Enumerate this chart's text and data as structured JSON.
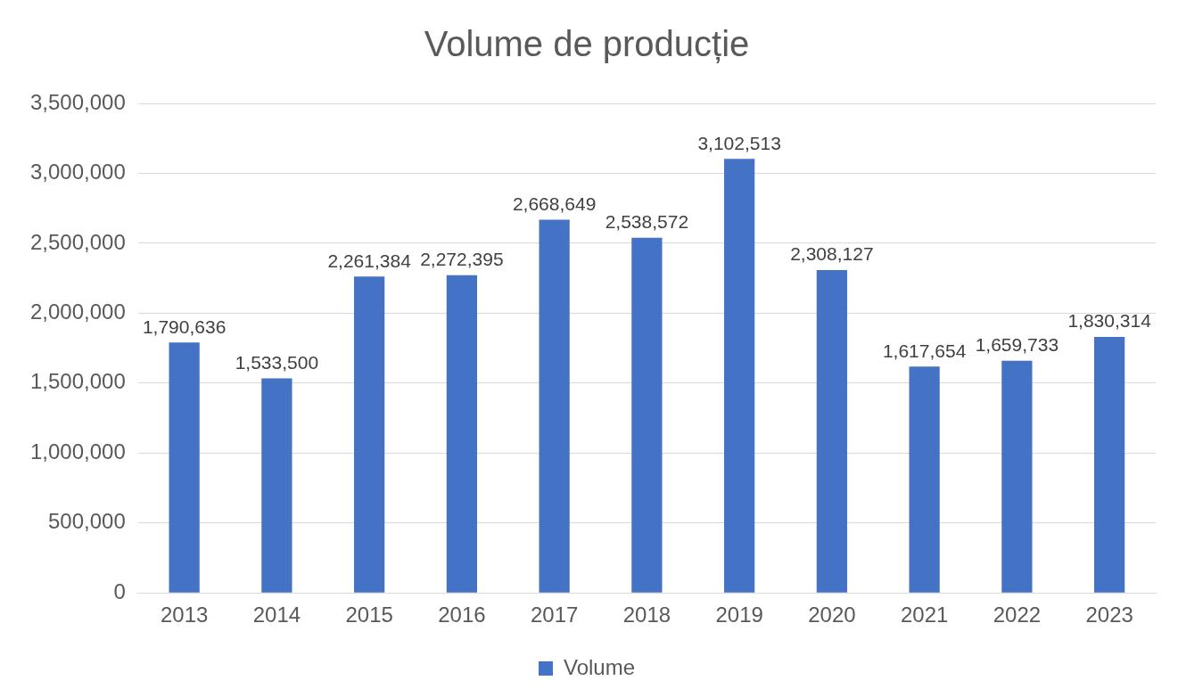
{
  "chart_data": {
    "type": "bar",
    "title": "Volume de producție",
    "categories": [
      "2013",
      "2014",
      "2015",
      "2016",
      "2017",
      "2018",
      "2019",
      "2020",
      "2021",
      "2022",
      "2023"
    ],
    "series": [
      {
        "name": "Volume",
        "color": "#4472c4",
        "values": [
          1790636,
          1533500,
          2261384,
          2272395,
          2668649,
          2538572,
          3102513,
          2308127,
          1617654,
          1659733,
          1830314
        ],
        "value_labels": [
          "1,790,636",
          "1,533,500",
          "2,261,384",
          "2,272,395",
          "2,668,649",
          "2,538,572",
          "3,102,513",
          "2,308,127",
          "1,617,654",
          "1,659,733",
          "1,830,314"
        ]
      }
    ],
    "ylim": [
      0,
      3500000
    ],
    "yticks": [
      {
        "value": 0,
        "label": "0"
      },
      {
        "value": 500000,
        "label": "500,000"
      },
      {
        "value": 1000000,
        "label": "1,000,000"
      },
      {
        "value": 1500000,
        "label": "1,500,000"
      },
      {
        "value": 2000000,
        "label": "2,000,000"
      },
      {
        "value": 2500000,
        "label": "2,500,000"
      },
      {
        "value": 3000000,
        "label": "3,000,000"
      },
      {
        "value": 3500000,
        "label": "3,500,000"
      }
    ],
    "grid": "y",
    "legend": "bottom"
  }
}
